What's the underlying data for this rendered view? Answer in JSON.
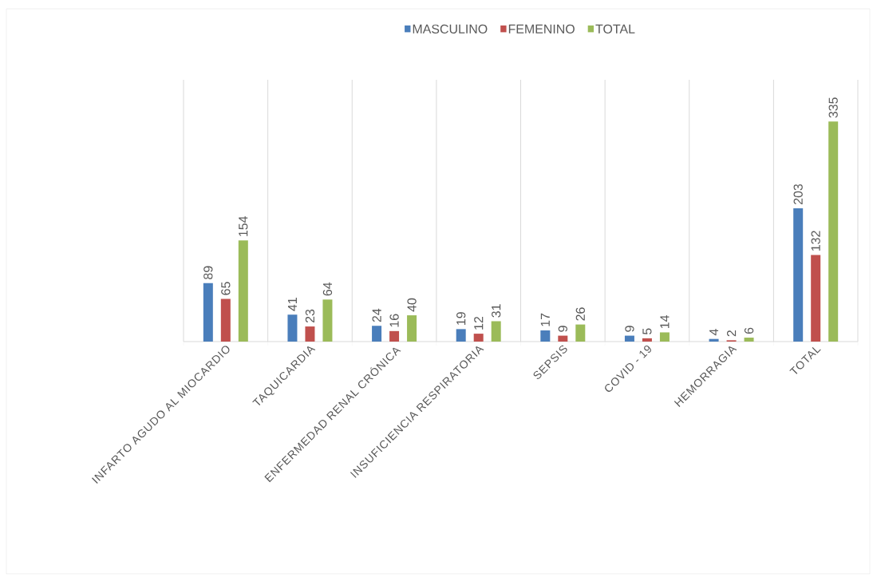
{
  "chart_data": {
    "type": "bar",
    "categories": [
      "INFARTO AGUDO AL MIOCARDIO",
      "TAQUICARDIA",
      "ENFERMEDAD RENAL CRÓNICA",
      "INSUFICIENCIA RESPIRATORIA",
      "SEPSIS",
      "COVID - 19",
      "HEMORRAGIA",
      "TOTAL"
    ],
    "series": [
      {
        "name": "MASCULINO",
        "color": "#4a7ebb",
        "values": [
          89,
          41,
          24,
          19,
          17,
          9,
          4,
          203
        ]
      },
      {
        "name": "FEMENINO",
        "color": "#c0504d",
        "values": [
          65,
          23,
          16,
          12,
          9,
          5,
          2,
          132
        ]
      },
      {
        "name": "TOTAL",
        "color": "#9bbb59",
        "values": [
          154,
          64,
          40,
          31,
          26,
          14,
          6,
          335
        ]
      }
    ],
    "data_labels": true,
    "grid": "x",
    "legend": "top"
  }
}
